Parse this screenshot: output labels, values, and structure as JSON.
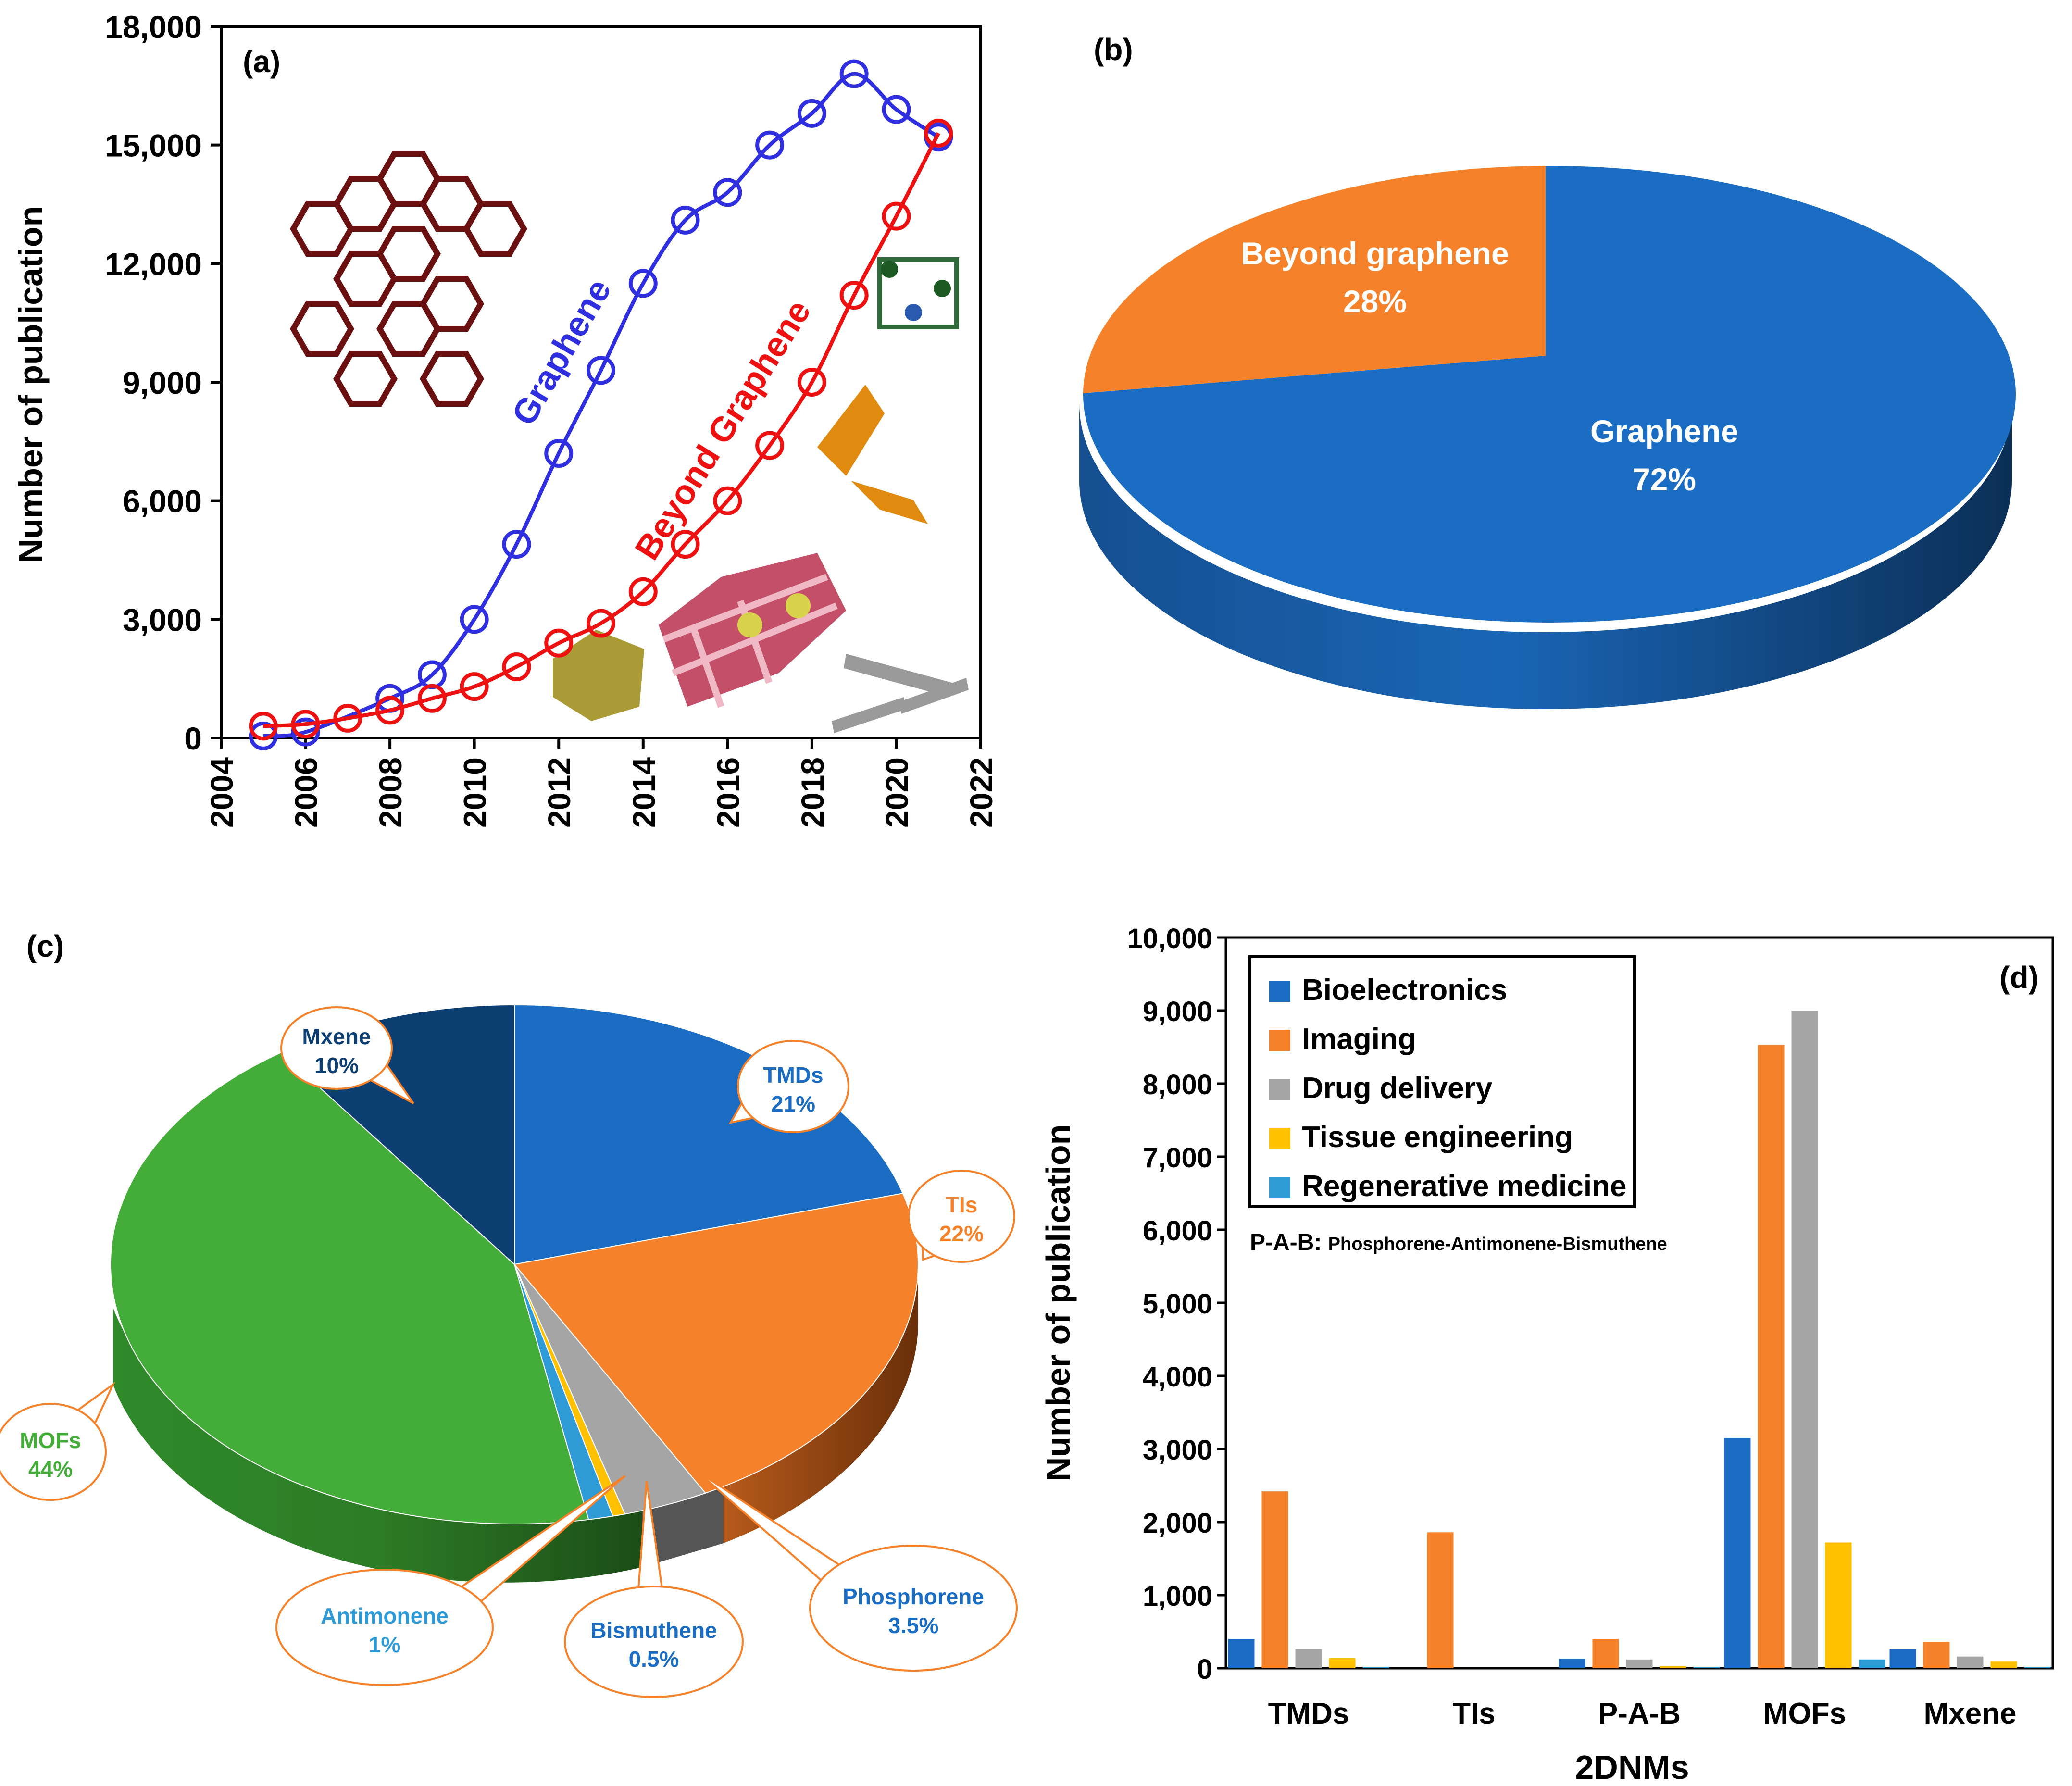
{
  "panel_a": {
    "label": "(a)",
    "series_labels": {
      "graphene": "Graphene",
      "beyond": "Beyond  Graphene"
    },
    "colors": {
      "graphene": "#2f2fe0",
      "beyond": "#ee1111"
    }
  },
  "panel_b": {
    "label": "(b)",
    "slices": [
      {
        "name": "Graphene",
        "pct": "72%",
        "color": "#1a6dc2"
      },
      {
        "name": "Beyond graphene",
        "pct": "28%",
        "color": "#f5822a"
      }
    ]
  },
  "panel_c": {
    "label": "(c)",
    "callouts": [
      {
        "name": "Mxene",
        "pct": "10%"
      },
      {
        "name": "TMDs",
        "pct": "21%"
      },
      {
        "name": "TIs",
        "pct": "22%"
      },
      {
        "name": "MOFs",
        "pct": "44%"
      },
      {
        "name": "Antimonene",
        "pct": "1%"
      },
      {
        "name": "Bismuthene",
        "pct": "0.5%"
      },
      {
        "name": "Phosphorene",
        "pct": "3.5%"
      }
    ]
  },
  "panel_d": {
    "label": "(d)",
    "note_prefix": "P-A-B:",
    "note_text": "Phosphorene-Antimonene-Bismuthene"
  },
  "chart_data": [
    {
      "type": "line",
      "panel": "a",
      "ylabel": "Number of publication",
      "xlabel": "",
      "xlim": [
        2004,
        2022
      ],
      "ylim": [
        0,
        18000
      ],
      "xticks": [
        "2004",
        "2006",
        "2008",
        "2010",
        "2012",
        "2014",
        "2016",
        "2018",
        "2020",
        "2022"
      ],
      "yticks": [
        "0",
        "3,000",
        "6,000",
        "9,000",
        "12,000",
        "15,000",
        "18,000"
      ],
      "grid": false,
      "series": [
        {
          "name": "Graphene",
          "color": "#2f2fe0",
          "x": [
            2005,
            2006,
            2008,
            2009,
            2010,
            2011,
            2012,
            2013,
            2014,
            2015,
            2016,
            2017,
            2018,
            2019,
            2020,
            2021
          ],
          "y": [
            50,
            150,
            1000,
            1600,
            3000,
            4900,
            7200,
            9300,
            11500,
            13100,
            13800,
            15000,
            15800,
            16800,
            15900,
            15200
          ]
        },
        {
          "name": "Beyond  Graphene",
          "color": "#ee1111",
          "x": [
            2005,
            2006,
            2007,
            2008,
            2009,
            2010,
            2011,
            2012,
            2013,
            2014,
            2015,
            2016,
            2017,
            2018,
            2019,
            2020,
            2021
          ],
          "y": [
            300,
            350,
            500,
            700,
            1000,
            1300,
            1800,
            2400,
            2900,
            3700,
            4900,
            6000,
            7400,
            9000,
            11200,
            13200,
            15300
          ]
        }
      ]
    },
    {
      "type": "pie",
      "panel": "b",
      "labels": [
        "Graphene",
        "Beyond graphene"
      ],
      "values": [
        72,
        28
      ]
    },
    {
      "type": "pie",
      "panel": "c",
      "labels": [
        "TMDs",
        "TIs",
        "Phosphorene",
        "Bismuthene",
        "Antimonene",
        "MOFs",
        "Mxene"
      ],
      "values": [
        21,
        22,
        3.5,
        0.5,
        1,
        44,
        10
      ],
      "colors": [
        "#1a6dc2",
        "#f5822a",
        "#a5a5a5",
        "#ffc000",
        "#2e9ad6",
        "#44ad3a",
        "#0d3f73"
      ]
    },
    {
      "type": "bar",
      "panel": "d",
      "categories": [
        "TMDs",
        "TIs",
        "P-A-B",
        "MOFs",
        "Mxene"
      ],
      "xlabel": "2DNMs",
      "ylabel": "Number of publication",
      "ylim": [
        0,
        10000
      ],
      "yticks": [
        "0",
        "1,000",
        "2,000",
        "3,000",
        "4,000",
        "5,000",
        "6,000",
        "7,000",
        "8,000",
        "9,000",
        "10,000"
      ],
      "legend": "top-left",
      "series": [
        {
          "name": "Bioelectronics",
          "color": "#1a6dc2",
          "values": [
            400,
            0,
            130,
            3150,
            260
          ]
        },
        {
          "name": "Imaging",
          "color": "#f5822a",
          "values": [
            2420,
            1860,
            400,
            8530,
            360
          ]
        },
        {
          "name": "Drug delivery",
          "color": "#a5a5a5",
          "values": [
            260,
            0,
            120,
            9000,
            160
          ]
        },
        {
          "name": "Tissue engineering",
          "color": "#ffc000",
          "values": [
            140,
            0,
            30,
            1720,
            90
          ]
        },
        {
          "name": "Regenerative medicine",
          "color": "#2e9ad6",
          "values": [
            20,
            0,
            20,
            120,
            20
          ]
        }
      ]
    }
  ]
}
